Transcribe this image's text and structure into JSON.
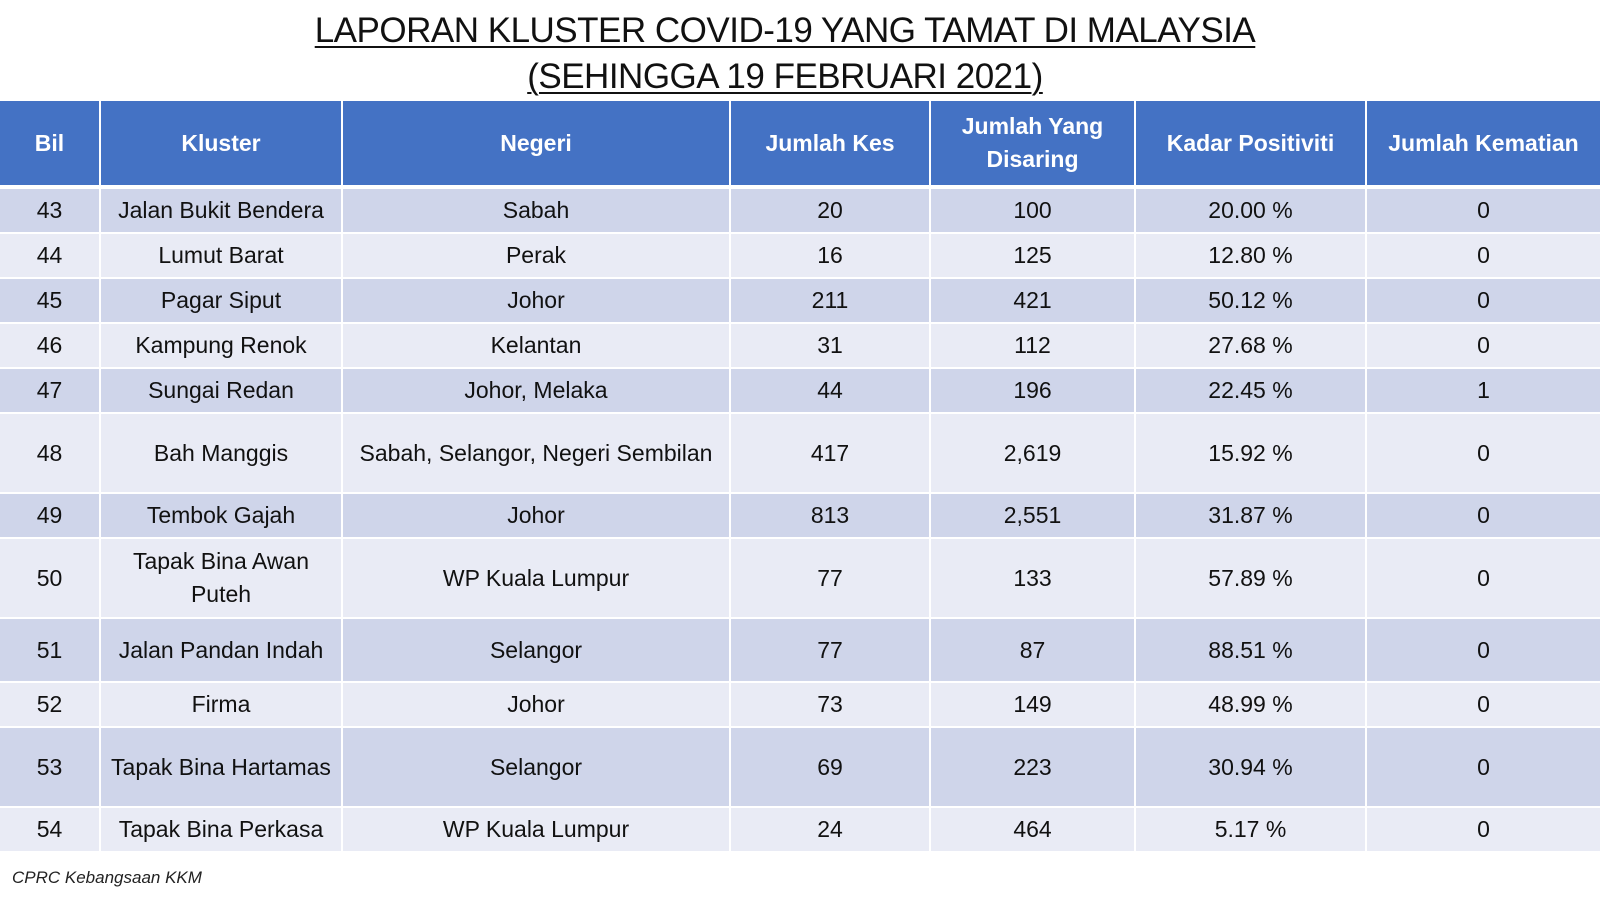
{
  "title": {
    "line1": "LAPORAN KLUSTER COVID-19 YANG TAMAT DI MALAYSIA",
    "line2": "(SEHINGGA  19 FEBRUARI 2021)"
  },
  "table": {
    "headers": [
      "Bil",
      "Kluster",
      "Negeri",
      "Jumlah Kes",
      "Jumlah Yang Disaring",
      "Kadar Positiviti",
      "Jumlah Kematian"
    ],
    "rows": [
      [
        "43",
        "Jalan Bukit Bendera",
        "Sabah",
        "20",
        "100",
        "20.00 %",
        "0"
      ],
      [
        "44",
        "Lumut Barat",
        "Perak",
        "16",
        "125",
        "12.80 %",
        "0"
      ],
      [
        "45",
        "Pagar Siput",
        "Johor",
        "211",
        "421",
        "50.12 %",
        "0"
      ],
      [
        "46",
        "Kampung Renok",
        "Kelantan",
        "31",
        "112",
        "27.68 %",
        "0"
      ],
      [
        "47",
        "Sungai Redan",
        "Johor, Melaka",
        "44",
        "196",
        "22.45 %",
        "1"
      ],
      [
        "48",
        "Bah Manggis",
        "Sabah, Selangor, Negeri Sembilan",
        "417",
        "2,619",
        "15.92 %",
        "0"
      ],
      [
        "49",
        "Tembok Gajah",
        "Johor",
        "813",
        "2,551",
        "31.87 %",
        "0"
      ],
      [
        "50",
        "Tapak Bina Awan Puteh",
        "WP Kuala Lumpur",
        "77",
        "133",
        "57.89 %",
        "0"
      ],
      [
        "51",
        "Jalan Pandan Indah",
        "Selangor",
        "77",
        "87",
        "88.51 %",
        "0"
      ],
      [
        "52",
        "Firma",
        "Johor",
        "73",
        "149",
        "48.99 %",
        "0"
      ],
      [
        "53",
        "Tapak Bina Hartamas",
        "Selangor",
        "69",
        "223",
        "30.94 %",
        "0"
      ],
      [
        "54",
        "Tapak Bina Perkasa",
        "WP Kuala Lumpur",
        "24",
        "464",
        "5.17 %",
        "0"
      ]
    ]
  },
  "footer": "CPRC Kebangsaan KKM"
}
